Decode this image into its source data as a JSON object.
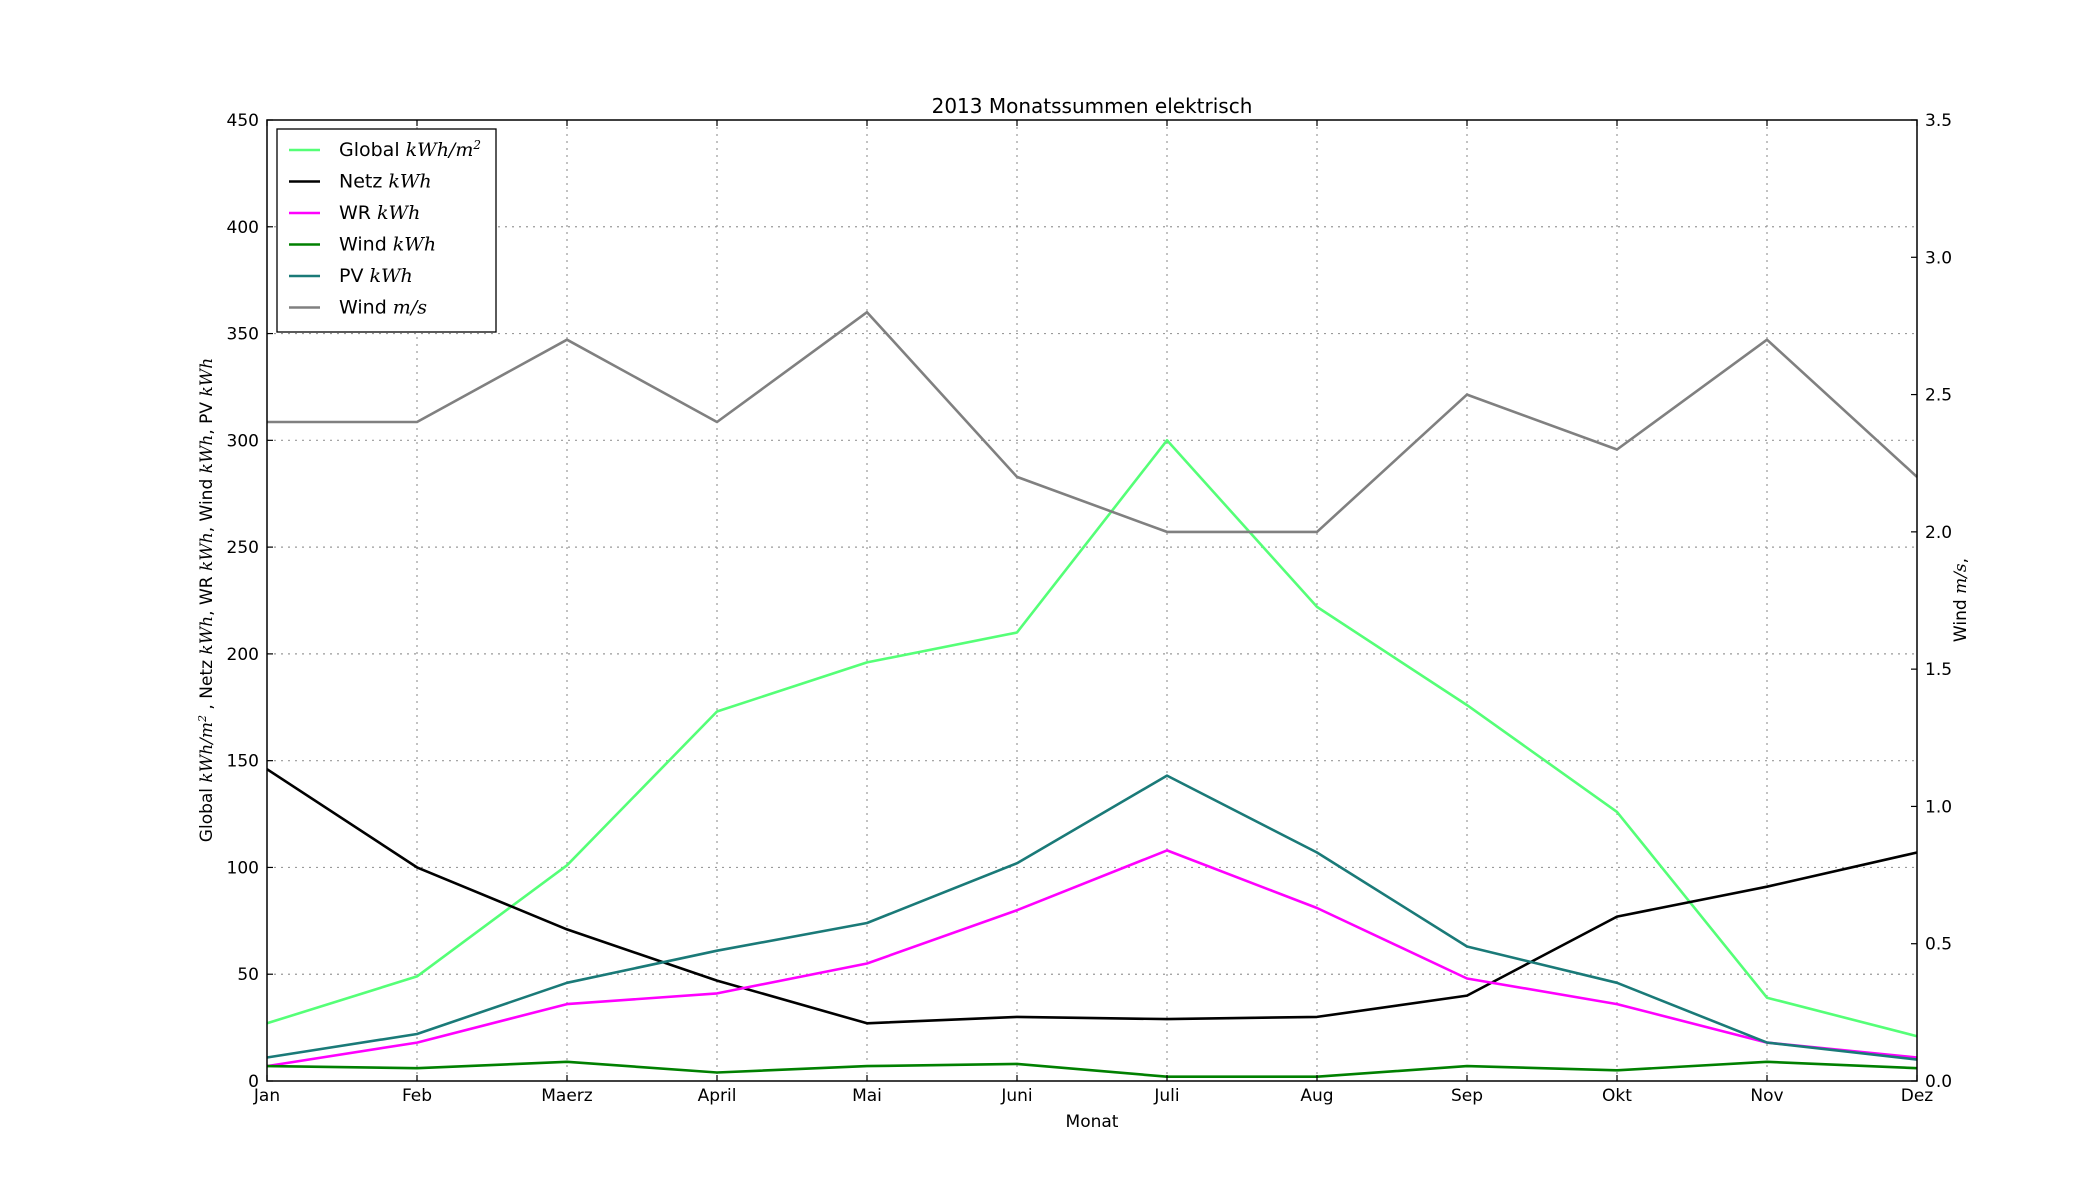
{
  "chart_data": {
    "type": "line",
    "title": "2013 Monatssummen elektrisch",
    "xlabel": "Monat",
    "ylabel": {
      "parts": [
        {
          "t": "Global ",
          "i": false
        },
        {
          "t": "kWh/m",
          "i": true
        },
        {
          "t": "2",
          "i": true,
          "sup": true
        },
        {
          "t": " , Netz ",
          "i": false
        },
        {
          "t": "kWh",
          "i": true
        },
        {
          "t": ", WR ",
          "i": false
        },
        {
          "t": "kWh",
          "i": true
        },
        {
          "t": ", Wind ",
          "i": false
        },
        {
          "t": "kWh",
          "i": true
        },
        {
          "t": ", PV ",
          "i": false
        },
        {
          "t": "kWh",
          "i": true
        }
      ]
    },
    "y2label": {
      "parts": [
        {
          "t": "Wind ",
          "i": false
        },
        {
          "t": "m/s",
          "i": true
        },
        {
          "t": ",",
          "i": false
        }
      ]
    },
    "categories": [
      "Jan",
      "Feb",
      "Maerz",
      "April",
      "Mai",
      "Juni",
      "Juli",
      "Aug",
      "Sep",
      "Okt",
      "Nov",
      "Dez"
    ],
    "ylim": [
      0,
      450
    ],
    "y2lim": [
      0,
      3.5
    ],
    "yticks": [
      0,
      50,
      100,
      150,
      200,
      250,
      300,
      350,
      400,
      450
    ],
    "y2ticks": [
      "0.0",
      "0.5",
      "1.0",
      "1.5",
      "2.0",
      "2.5",
      "3.0",
      "3.5"
    ],
    "grid": true,
    "legend_position": "top-left",
    "series": [
      {
        "name": "Global",
        "unit": "kWh/m",
        "unit_sup": "2",
        "color": "#55ff77",
        "axis": "left",
        "values": [
          27,
          49,
          101,
          173,
          196,
          210,
          300,
          222,
          176,
          126,
          39,
          21
        ]
      },
      {
        "name": "Netz",
        "unit": "kWh",
        "color": "#000000",
        "axis": "left",
        "values": [
          146,
          100,
          71,
          47,
          27,
          30,
          29,
          30,
          40,
          77,
          91,
          107
        ]
      },
      {
        "name": "WR",
        "unit": "kWh",
        "color": "#ff00ff",
        "axis": "left",
        "values": [
          7,
          18,
          36,
          41,
          55,
          80,
          108,
          81,
          48,
          36,
          18,
          11
        ]
      },
      {
        "name": "Wind",
        "unit": "kWh",
        "color": "#008000",
        "axis": "left",
        "values": [
          7,
          6,
          9,
          4,
          7,
          8,
          2,
          2,
          7,
          5,
          9,
          6
        ]
      },
      {
        "name": "PV",
        "unit": "kWh",
        "color": "#1a7a78",
        "axis": "left",
        "values": [
          11,
          22,
          46,
          61,
          74,
          102,
          143,
          107,
          63,
          46,
          18,
          10
        ]
      },
      {
        "name": "Wind",
        "unit": "m/s",
        "color": "#808080",
        "axis": "right",
        "values": [
          2.4,
          2.4,
          2.7,
          2.4,
          2.8,
          2.2,
          2.0,
          2.0,
          2.5,
          2.3,
          2.7,
          2.2
        ]
      }
    ]
  }
}
